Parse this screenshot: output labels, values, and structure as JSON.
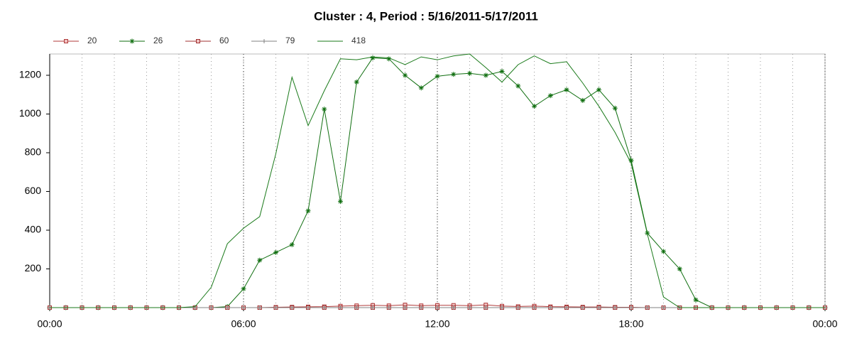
{
  "chart_data": {
    "type": "line",
    "title": "Cluster : 4, Period : 5/16/2011-5/17/2011",
    "x": [
      0,
      0.5,
      1,
      1.5,
      2,
      2.5,
      3,
      3.5,
      4,
      4.5,
      5,
      5.5,
      6,
      6.5,
      7,
      7.5,
      8,
      8.5,
      9,
      9.5,
      10,
      10.5,
      11,
      11.5,
      12,
      12.5,
      13,
      13.5,
      14,
      14.5,
      15,
      15.5,
      16,
      16.5,
      17,
      17.5,
      18,
      18.5,
      19,
      19.5,
      20,
      20.5,
      21,
      21.5,
      22,
      22.5,
      23,
      23.5,
      24
    ],
    "series": [
      {
        "name": "20",
        "color": "#b03a3a",
        "marker": "square",
        "values": [
          0,
          0,
          0,
          0,
          0,
          0,
          0,
          0,
          0,
          0,
          0,
          0,
          0,
          0,
          2,
          3,
          4,
          5,
          8,
          10,
          12,
          10,
          14,
          10,
          12,
          12,
          10,
          14,
          8,
          6,
          8,
          5,
          4,
          3,
          3,
          2,
          2,
          0,
          0,
          0,
          0,
          0,
          0,
          0,
          0,
          0,
          0,
          0,
          0
        ]
      },
      {
        "name": "26",
        "color": "#0f6e0f",
        "marker": "star",
        "values": [
          0,
          0,
          0,
          0,
          0,
          0,
          0,
          0,
          0,
          0,
          0,
          5,
          97,
          245,
          285,
          325,
          500,
          1025,
          548,
          1165,
          1290,
          1285,
          1200,
          1135,
          1195,
          1205,
          1210,
          1200,
          1220,
          1145,
          1040,
          1095,
          1125,
          1070,
          1125,
          1030,
          760,
          385,
          290,
          200,
          40,
          0,
          0,
          0,
          0,
          0,
          0,
          0,
          0
        ]
      },
      {
        "name": "60",
        "color": "#a03030",
        "marker": "square",
        "values": [
          0,
          0,
          0,
          0,
          0,
          0,
          0,
          0,
          0,
          0,
          0,
          0,
          0,
          0,
          0,
          0,
          0,
          0,
          0,
          0,
          0,
          0,
          0,
          0,
          0,
          0,
          0,
          0,
          0,
          0,
          0,
          0,
          0,
          0,
          0,
          0,
          0,
          0,
          0,
          0,
          0,
          0,
          0,
          0,
          0,
          0,
          0,
          0,
          0
        ]
      },
      {
        "name": "79",
        "color": "#808080",
        "marker": "plus",
        "values": [
          0,
          0,
          0,
          0,
          0,
          0,
          0,
          0,
          0,
          0,
          0,
          0,
          0,
          0,
          0,
          0,
          0,
          0,
          0,
          0,
          0,
          0,
          0,
          0,
          0,
          0,
          0,
          0,
          0,
          0,
          0,
          0,
          0,
          0,
          0,
          0,
          0,
          0,
          0,
          0,
          0,
          0,
          0,
          0,
          0,
          0,
          0,
          0,
          0
        ]
      },
      {
        "name": "418",
        "color": "#1a7a1a",
        "marker": "none",
        "values": [
          0,
          0,
          0,
          0,
          0,
          0,
          0,
          0,
          0,
          5,
          105,
          330,
          410,
          470,
          795,
          1190,
          940,
          1120,
          1285,
          1280,
          1295,
          1290,
          1255,
          1295,
          1280,
          1300,
          1310,
          1240,
          1165,
          1255,
          1300,
          1260,
          1270,
          1160,
          1040,
          905,
          745,
          380,
          55,
          0,
          0,
          0,
          0,
          0,
          0,
          0,
          0,
          0,
          0
        ]
      }
    ],
    "xlim": [
      0,
      24
    ],
    "xticks": [
      {
        "value": 0,
        "label": "00:00"
      },
      {
        "value": 6,
        "label": "06:00"
      },
      {
        "value": 12,
        "label": "12:00"
      },
      {
        "value": 18,
        "label": "18:00"
      },
      {
        "value": 24,
        "label": "00:00"
      }
    ],
    "ylim": [
      0,
      1310
    ],
    "yticks": [
      200,
      400,
      600,
      800,
      1000,
      1200
    ],
    "grid": true
  }
}
